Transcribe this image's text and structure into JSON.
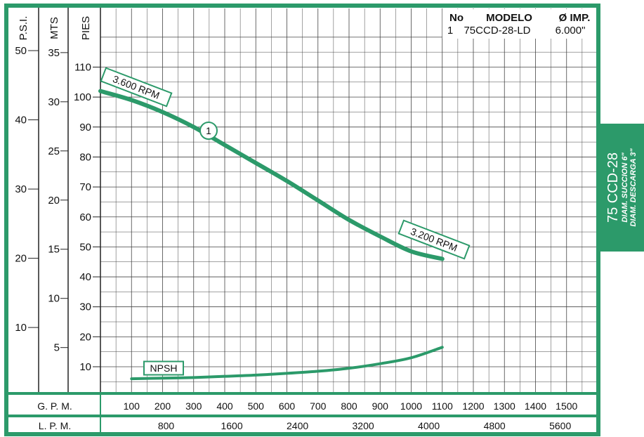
{
  "side_tab": {
    "title": "75 CCD-28",
    "line1": "DIAM. SUCCION 6\"",
    "line2": "DIAM. DESCARGA 3\""
  },
  "colors": {
    "frame": "#2c9a6a",
    "curve": "#2c9a6a",
    "grid": "#444444",
    "tab": "#2c9a6a"
  },
  "legend": {
    "headers": [
      "No",
      "MODELO",
      "Ø IMP."
    ],
    "rows": [
      {
        "no": "1",
        "modelo": "75CCD-28-LD",
        "imp": "6.000\""
      }
    ]
  },
  "chart_data": {
    "type": "line",
    "x": {
      "label": "G. P. M.",
      "min": 0,
      "max": 1550,
      "ticks": [
        "100",
        "200",
        "300",
        "400",
        "500",
        "600",
        "700",
        "800",
        "900",
        "1000",
        "1100",
        "1200",
        "1300",
        "1400",
        "1500"
      ]
    },
    "x2": {
      "label": "L. P. M.",
      "ticks": [
        "800",
        "1600",
        "2400",
        "3200",
        "4000",
        "4800",
        "5600"
      ]
    },
    "y_axes": [
      {
        "label": "P.S.I.",
        "ticks": [
          "10",
          "20",
          "30",
          "40",
          "50"
        ]
      },
      {
        "label": "MTS",
        "ticks": [
          "5",
          "10",
          "15",
          "20",
          "25",
          "30",
          "35"
        ]
      },
      {
        "label": "PIES",
        "ticks": [
          "10",
          "20",
          "30",
          "40",
          "50",
          "60",
          "70",
          "80",
          "90",
          "100",
          "110"
        ]
      }
    ],
    "ylim": [
      0,
      120
    ],
    "grid": true,
    "series": [
      {
        "name": "1",
        "kind": "head",
        "points": [
          [
            0,
            102
          ],
          [
            100,
            99
          ],
          [
            200,
            95
          ],
          [
            300,
            90
          ],
          [
            400,
            84
          ],
          [
            500,
            78
          ],
          [
            600,
            72
          ],
          [
            700,
            65.5
          ],
          [
            800,
            59
          ],
          [
            900,
            53.5
          ],
          [
            1000,
            48.5
          ],
          [
            1100,
            46
          ]
        ]
      },
      {
        "name": "NPSH",
        "kind": "npsh",
        "points": [
          [
            100,
            6
          ],
          [
            200,
            6.2
          ],
          [
            300,
            6.4
          ],
          [
            400,
            6.8
          ],
          [
            500,
            7.2
          ],
          [
            600,
            7.8
          ],
          [
            700,
            8.5
          ],
          [
            800,
            9.5
          ],
          [
            900,
            11
          ],
          [
            1000,
            13
          ],
          [
            1100,
            16.5
          ]
        ]
      }
    ],
    "annotations": [
      "3.600 RPM",
      "3.200 RPM",
      "NPSH",
      "1"
    ]
  }
}
